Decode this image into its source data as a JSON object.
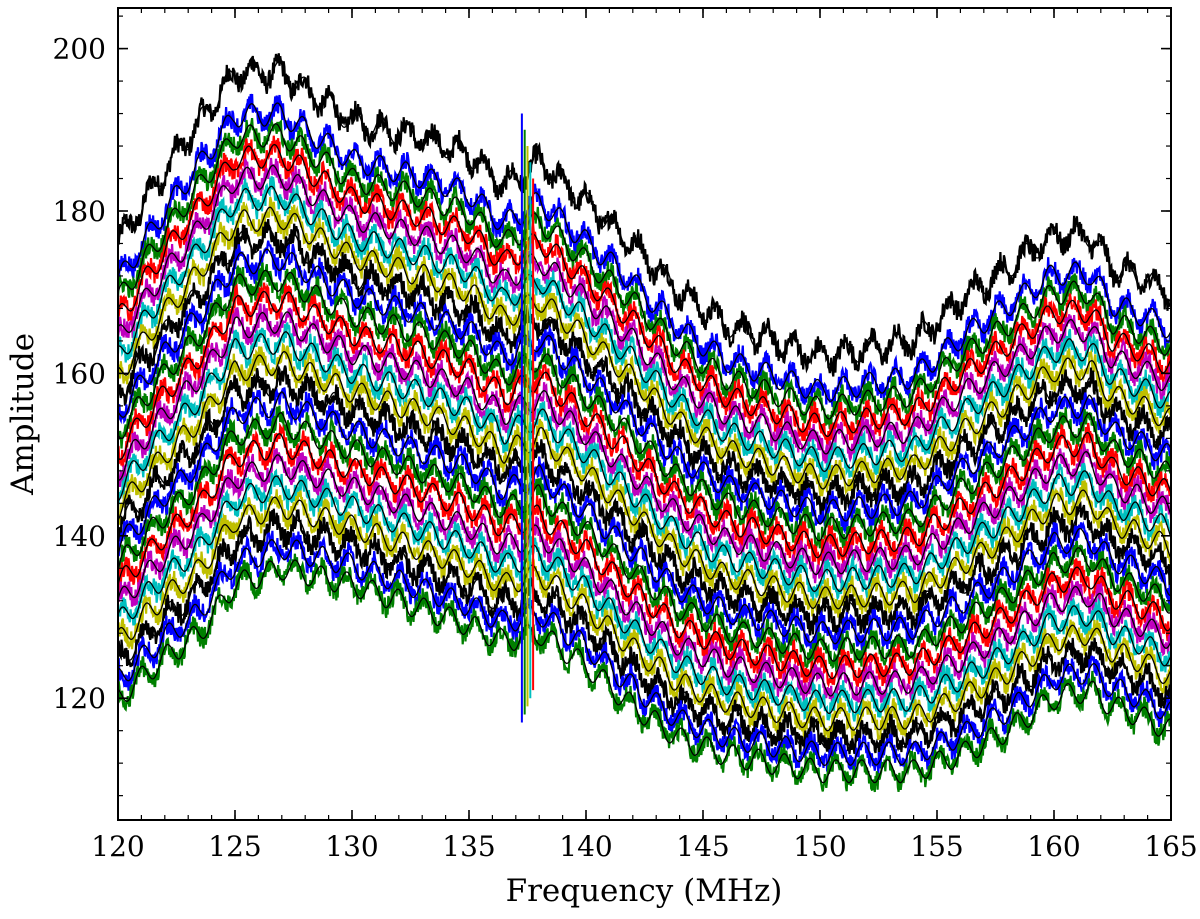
{
  "chart_data": {
    "type": "line",
    "title": "",
    "xlabel": "Frequency (MHz)",
    "ylabel": "Amplitude",
    "xlim": [
      120,
      165
    ],
    "ylim": [
      105,
      205
    ],
    "xticks": [
      120,
      125,
      130,
      135,
      140,
      145,
      150,
      155,
      160,
      165
    ],
    "yticks": [
      120,
      140,
      160,
      180,
      200
    ],
    "x_minor_step": 1,
    "y_minor_step": 4,
    "grid": false,
    "legend": "none",
    "x_knots": [
      120,
      122,
      123.5,
      125,
      127,
      130,
      133,
      135,
      136.5,
      138,
      140,
      142,
      144,
      146,
      148,
      150,
      152,
      154,
      156,
      158,
      160,
      161.5,
      162.5,
      163.5,
      165
    ],
    "envelope_top": [
      176,
      185,
      191,
      197,
      197,
      191,
      189,
      187,
      183,
      186,
      181,
      176,
      170,
      166,
      164,
      162,
      163,
      164,
      169,
      173,
      177,
      177,
      173,
      172,
      170
    ],
    "envelope_bottom": [
      120,
      125,
      128,
      134,
      136,
      134,
      131,
      129,
      127,
      128,
      124,
      119,
      115,
      113,
      112,
      111,
      111,
      111,
      113,
      116,
      120,
      121,
      119,
      118,
      116
    ],
    "ripple_period_mhz": 1.1,
    "ripple_amplitude": 1.4,
    "spike": {
      "x": 137.5,
      "range": [
        117,
        192
      ]
    },
    "series": [
      {
        "color": "#000000",
        "offset_top": 176,
        "offset_bottom": 120
      },
      {
        "color": "#0000ff",
        "offset_top": 172,
        "offset_bottom": 121
      },
      {
        "color": "#008000",
        "offset_top": 170,
        "offset_bottom": 122
      },
      {
        "color": "#ff0000",
        "offset_top": 168,
        "offset_bottom": 123
      },
      {
        "color": "#bf00bf",
        "offset_top": 166,
        "offset_bottom": 124
      },
      {
        "color": "#00bfbf",
        "offset_top": 164,
        "offset_bottom": 125
      },
      {
        "color": "#bfbf00",
        "offset_top": 162,
        "offset_bottom": 126
      },
      {
        "color": "#000000",
        "offset_top": 160,
        "offset_bottom": 127
      },
      {
        "color": "#0000ff",
        "offset_top": 158,
        "offset_bottom": 128
      },
      {
        "color": "#008000",
        "offset_top": 156,
        "offset_bottom": 129
      },
      {
        "color": "#ff0000",
        "offset_top": 154,
        "offset_bottom": 130
      },
      {
        "color": "#bf00bf",
        "offset_top": 152,
        "offset_bottom": 131
      },
      {
        "color": "#00bfbf",
        "offset_top": 150,
        "offset_bottom": 132
      },
      {
        "color": "#bfbf00",
        "offset_top": 148,
        "offset_bottom": 133
      },
      {
        "color": "#000000",
        "offset_top": 146,
        "offset_bottom": 134
      },
      {
        "color": "#0000ff",
        "offset_top": 144,
        "offset_bottom": 135
      },
      {
        "color": "#008000",
        "offset_top": 142,
        "offset_bottom": 136
      },
      {
        "color": "#ff0000",
        "offset_top": 140,
        "offset_bottom": 137
      },
      {
        "color": "#bf00bf",
        "offset_top": 138,
        "offset_bottom": 138
      },
      {
        "color": "#00bfbf",
        "offset_top": 136,
        "offset_bottom": 139
      },
      {
        "color": "#bfbf00",
        "offset_top": 134,
        "offset_bottom": 140
      },
      {
        "color": "#000000",
        "offset_top": 132,
        "offset_bottom": 141
      },
      {
        "color": "#0000ff",
        "offset_top": 130,
        "offset_bottom": 142
      },
      {
        "color": "#008000",
        "offset_top": 128,
        "offset_bottom": 143
      }
    ]
  }
}
